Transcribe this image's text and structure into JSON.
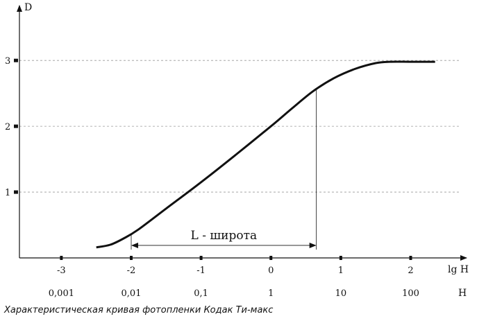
{
  "caption": "Характеристическая кривая фотопленки  Кодак Ти-макс",
  "chart_data": {
    "type": "line",
    "title": "Характеристическая кривая фотопленки  Кодак Ти-макс",
    "ylabel": "D",
    "xlabel": "lg H",
    "xlabel2": "H",
    "x_ticks": [
      -3,
      -2,
      -1,
      0,
      1,
      2
    ],
    "x_tick_labels": [
      "-3",
      "-2",
      "-1",
      "0",
      "1",
      "2"
    ],
    "x2_tick_labels": [
      "0,001",
      "0,01",
      "0,1",
      "1",
      "10",
      "100"
    ],
    "y_ticks": [
      1,
      2,
      3
    ],
    "y_tick_labels": [
      "1",
      "2",
      "3"
    ],
    "xlim": [
      -3.6,
      2.8
    ],
    "ylim": [
      0,
      3.75
    ],
    "grid": "horizontal dashed",
    "series": [
      {
        "x": [
          -2.5,
          -2.3,
          -2.1,
          -1.9,
          -1.5,
          -1.0,
          -0.5,
          0.0,
          0.3,
          0.6,
          0.9,
          1.2,
          1.5,
          1.7,
          2.0,
          2.35
        ],
        "y": [
          0.16,
          0.2,
          0.3,
          0.43,
          0.75,
          1.15,
          1.57,
          2.0,
          2.27,
          2.53,
          2.73,
          2.87,
          2.96,
          2.98,
          2.98,
          2.98
        ]
      }
    ],
    "annotations": [
      {
        "text": "L - широта",
        "x_start": -2.0,
        "x_end": 0.65
      }
    ]
  }
}
